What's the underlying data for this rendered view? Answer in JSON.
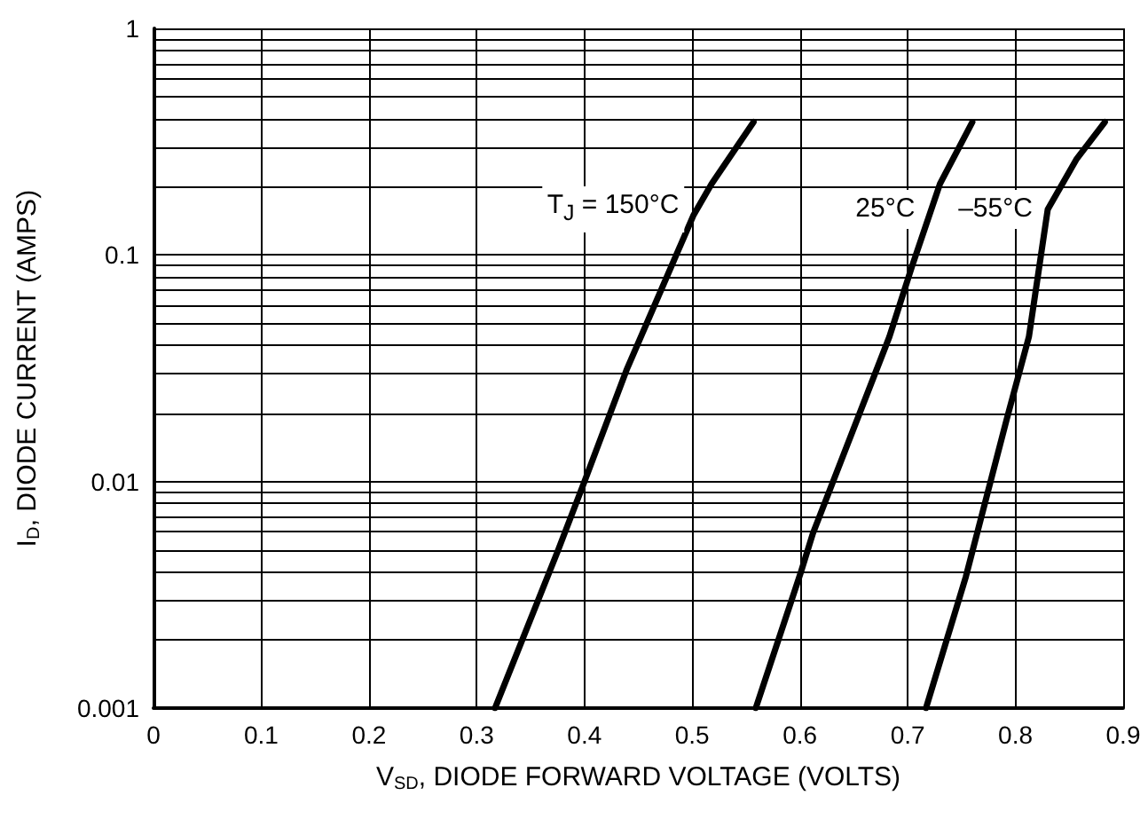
{
  "chart_data": {
    "type": "line",
    "xlabel": "V$_{SD}$, DIODE FORWARD VOLTAGE (VOLTS)",
    "ylabel": "I$_{D}$, DIODE CURRENT (AMPS)",
    "log": "y",
    "grid": true,
    "marker": "none",
    "line_style": "solid",
    "xlim": [
      0,
      0.9
    ],
    "xticks": [
      0,
      0.1,
      0.2,
      0.3,
      0.4,
      0.5,
      0.6,
      0.7,
      0.8,
      0.9
    ],
    "ylim": [
      0.001,
      1
    ],
    "yticks": [
      0.001,
      {
        "value": 0.002,
        "label": null
      },
      {
        "value": 0.003,
        "label": null
      },
      {
        "value": 0.004,
        "label": null
      },
      {
        "value": 0.005,
        "label": null
      },
      {
        "value": 0.006,
        "label": null
      },
      {
        "value": 0.007,
        "label": null
      },
      {
        "value": 0.008,
        "label": null
      },
      {
        "value": 0.009,
        "label": null
      },
      0.01,
      {
        "value": 0.02,
        "label": null
      },
      {
        "value": 0.03,
        "label": null
      },
      {
        "value": 0.04,
        "label": null
      },
      {
        "value": 0.05,
        "label": null
      },
      {
        "value": 0.06,
        "label": null
      },
      {
        "value": 0.07,
        "label": null
      },
      {
        "value": 0.08,
        "label": null
      },
      {
        "value": 0.09,
        "label": null
      },
      0.1,
      {
        "value": 0.2,
        "label": null
      },
      {
        "value": 0.3,
        "label": null
      },
      {
        "value": 0.4,
        "label": null
      },
      {
        "value": 0.5,
        "label": null
      },
      {
        "value": 0.6,
        "label": null
      },
      {
        "value": 0.7,
        "label": null
      },
      {
        "value": 0.8,
        "label": null
      },
      {
        "value": 0.9,
        "label": null
      },
      1
    ],
    "series": [
      {
        "name": "T$_{J}$ = 150°C",
        "color": "#000000",
        "x": [
          0.317,
          0.375,
          0.4,
          0.439,
          0.501,
          0.518,
          0.557
        ],
        "values": [
          0.001,
          0.0049,
          0.01,
          0.031,
          0.149,
          0.206,
          0.386
        ]
      },
      {
        "name": "25°C",
        "color": "#000000",
        "x": [
          0.559,
          0.601,
          0.612,
          0.683,
          0.704,
          0.73,
          0.76
        ],
        "values": [
          0.001,
          0.004,
          0.0059,
          0.0435,
          0.089,
          0.206,
          0.386
        ]
      },
      {
        "name": "–55°C",
        "color": "#000000",
        "x": [
          0.717,
          0.754,
          0.792,
          0.8125,
          0.83,
          0.857,
          0.883
        ],
        "values": [
          0.001,
          0.0038,
          0.0189,
          0.0435,
          0.159,
          0.266,
          0.386
        ]
      }
    ]
  }
}
